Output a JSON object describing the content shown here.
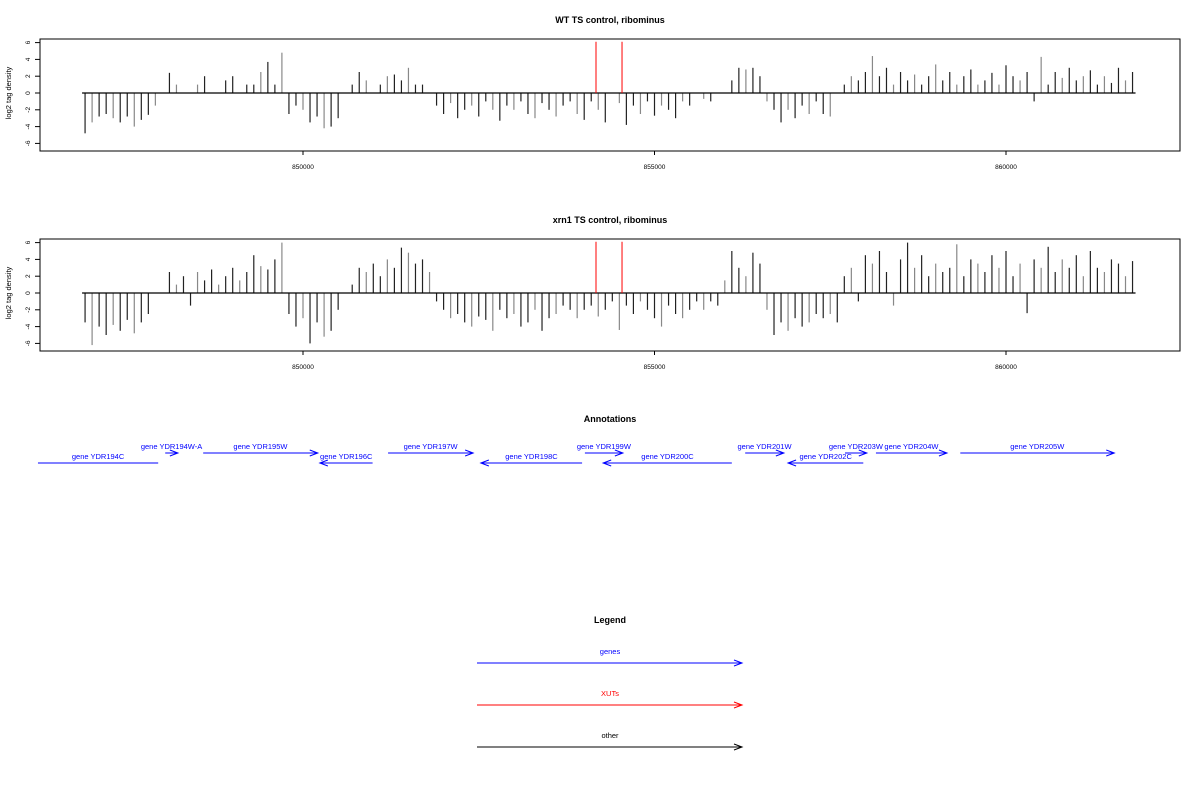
{
  "chart_data": [
    {
      "type": "bar",
      "title": "WT TS control, ribominus",
      "xlabel": "",
      "ylabel": "log2 tag density",
      "ylim": [
        -6,
        6
      ],
      "yticks": [
        "-6",
        "-4",
        "-2",
        "0",
        "2",
        "4",
        "6"
      ],
      "xticks": [
        "850000",
        "855000",
        "860000"
      ],
      "x_start": 846900,
      "x_step": 100,
      "values": [
        -4.8,
        -3.5,
        -2.8,
        -2.5,
        -3.0,
        -3.5,
        -2.8,
        -4.0,
        -3.2,
        -2.6,
        -1.5,
        0,
        2.4,
        1.0,
        0,
        0,
        1.0,
        2.0,
        0,
        0,
        1.5,
        2.0,
        0,
        1.0,
        1.0,
        2.5,
        3.7,
        1.0,
        4.8,
        -2.5,
        -1.5,
        -2.0,
        -3.5,
        -2.8,
        -4.2,
        -4.0,
        -3.0,
        0,
        1.0,
        2.5,
        1.5,
        0,
        1.0,
        2.0,
        2.2,
        1.5,
        3.0,
        1.0,
        1.0,
        0,
        -1.5,
        -2.5,
        -1.2,
        -3.0,
        -2.0,
        -1.5,
        -2.8,
        -1.0,
        -2.0,
        -3.3,
        -1.5,
        -2.0,
        -1.0,
        -2.5,
        -3.0,
        -1.2,
        -2.0,
        -2.8,
        -1.5,
        -1.0,
        -2.5,
        -3.2,
        -1.0,
        -2.0,
        -3.5,
        0,
        -1.2,
        -3.8,
        -1.5,
        -2.5,
        -1.0,
        -2.7,
        -1.5,
        -2.0,
        -3.0,
        -1.0,
        -1.5,
        0,
        -0.7,
        -1.0,
        0,
        0,
        1.5,
        3.0,
        2.8,
        3.0,
        2.0,
        -1.0,
        -2.0,
        -3.5,
        -2.0,
        -3.0,
        -1.5,
        -2.5,
        -1.0,
        -2.5,
        -2.8,
        0,
        1.0,
        2.0,
        1.5,
        2.5,
        4.4,
        2.0,
        3.0,
        1.0,
        2.5,
        1.5,
        2.2,
        1.0,
        2.0,
        3.4,
        1.5,
        2.5,
        1.0,
        2.0,
        2.8,
        1.0,
        1.5,
        2.4,
        1.0,
        3.3,
        2.0,
        1.5,
        2.5,
        -1.0,
        4.3,
        1.0,
        2.5,
        1.8,
        3.0,
        1.5,
        2.0,
        2.7,
        1.0,
        2.0,
        1.2,
        3.0,
        1.5,
        2.5
      ],
      "markers": [
        {
          "position": 854168,
          "value": 6.1,
          "color": "#ff0000"
        },
        {
          "position": 854538,
          "value": 6.1,
          "color": "#ff0000"
        }
      ]
    },
    {
      "type": "bar",
      "title": "xrn1 TS control, ribominus",
      "xlabel": "",
      "ylabel": "log2 tag density",
      "ylim": [
        -6,
        6
      ],
      "yticks": [
        "-6",
        "-4",
        "-2",
        "0",
        "2",
        "4",
        "6"
      ],
      "xticks": [
        "850000",
        "855000",
        "860000"
      ],
      "x_start": 846900,
      "x_step": 100,
      "values": [
        -3.5,
        -6.2,
        -4.0,
        -5.0,
        -3.8,
        -4.5,
        -3.2,
        -4.8,
        -3.5,
        -2.5,
        0,
        0,
        2.5,
        1.0,
        2.0,
        -1.5,
        2.5,
        1.5,
        2.8,
        1.0,
        2.0,
        3.0,
        1.5,
        2.5,
        4.5,
        3.2,
        2.8,
        4.0,
        6.0,
        -2.5,
        -4.0,
        -3.0,
        -6.0,
        -3.5,
        -5.2,
        -4.5,
        -2.0,
        0,
        1.0,
        3.0,
        2.5,
        3.5,
        2.0,
        4.0,
        3.0,
        5.4,
        4.8,
        3.5,
        4.0,
        2.5,
        -1.0,
        -2.0,
        -3.0,
        -2.5,
        -3.5,
        -4.0,
        -2.8,
        -3.2,
        -4.5,
        -2.0,
        -3.0,
        -2.5,
        -4.0,
        -3.5,
        -2.0,
        -4.5,
        -3.0,
        -2.5,
        -1.5,
        -2.0,
        -3.0,
        -2.0,
        -1.5,
        -2.8,
        -2.0,
        -1.0,
        -4.4,
        -1.5,
        -2.5,
        -1.0,
        -2.0,
        -3.0,
        -4.0,
        -1.5,
        -2.5,
        -3.0,
        -2.0,
        -1.0,
        -2.0,
        -1.0,
        -1.5,
        1.5,
        5.0,
        3.0,
        2.0,
        4.8,
        3.5,
        -2.0,
        -5.0,
        -3.5,
        -4.5,
        -3.0,
        -4.0,
        -3.5,
        -2.5,
        -3.0,
        -2.5,
        -3.5,
        2.0,
        3.0,
        -1.0,
        4.5,
        3.5,
        5.0,
        2.5,
        -1.5,
        4.0,
        6.0,
        3.0,
        4.5,
        2.0,
        3.5,
        2.5,
        3.0,
        5.8,
        2.0,
        4.0,
        3.5,
        2.5,
        4.5,
        3.0,
        5.0,
        2.0,
        3.5,
        -2.4,
        4.0,
        3.0,
        5.5,
        2.5,
        4.0,
        3.0,
        4.5,
        2.0,
        5.0,
        3.0,
        2.5,
        4.0,
        3.5,
        2.0,
        3.8
      ],
      "markers": [
        {
          "position": 854168,
          "value": 6.1,
          "color": "#ff0000"
        },
        {
          "position": 854538,
          "value": 6.1,
          "color": "#ff0000"
        }
      ]
    }
  ],
  "annotations": {
    "title": "Annotations",
    "color": "#0000ff",
    "genes": [
      {
        "label": "gene YDR194C",
        "start": 846230,
        "end": 847940,
        "strand": "-",
        "row": 1,
        "arrow": false
      },
      {
        "label": "gene YDR194W-A",
        "start": 848040,
        "end": 848220,
        "strand": "+",
        "row": 0,
        "arrow": true
      },
      {
        "label": "gene YDR195W",
        "start": 848580,
        "end": 850210,
        "strand": "+",
        "row": 0,
        "arrow": true
      },
      {
        "label": "gene YDR196C",
        "start": 850240,
        "end": 850990,
        "strand": "-",
        "row": 1,
        "arrow": true
      },
      {
        "label": "gene YDR197W",
        "start": 851210,
        "end": 852420,
        "strand": "+",
        "row": 0,
        "arrow": true
      },
      {
        "label": "gene YDR198C",
        "start": 852530,
        "end": 853970,
        "strand": "-",
        "row": 1,
        "arrow": true
      },
      {
        "label": "gene YDR199W",
        "start": 854010,
        "end": 854550,
        "strand": "+",
        "row": 0,
        "arrow": true
      },
      {
        "label": "gene YDR200C",
        "start": 854270,
        "end": 856100,
        "strand": "-",
        "row": 1,
        "arrow": true
      },
      {
        "label": "gene YDR201W",
        "start": 856290,
        "end": 856840,
        "strand": "+",
        "row": 0,
        "arrow": true
      },
      {
        "label": "gene YDR202C",
        "start": 856900,
        "end": 857970,
        "strand": "-",
        "row": 1,
        "arrow": true
      },
      {
        "label": "gene YDR203W",
        "start": 857710,
        "end": 858020,
        "strand": "+",
        "row": 0,
        "arrow": true
      },
      {
        "label": "gene YDR204W",
        "start": 858150,
        "end": 859160,
        "strand": "+",
        "row": 0,
        "arrow": true
      },
      {
        "label": "gene YDR205W",
        "start": 859350,
        "end": 861540,
        "strand": "+",
        "row": 0,
        "arrow": true
      }
    ]
  },
  "legend": {
    "title": "Legend",
    "items": [
      {
        "label": "genes",
        "color": "#0000ff"
      },
      {
        "label": "XUTs",
        "color": "#ff0000"
      },
      {
        "label": "other",
        "color": "#000000"
      }
    ]
  }
}
